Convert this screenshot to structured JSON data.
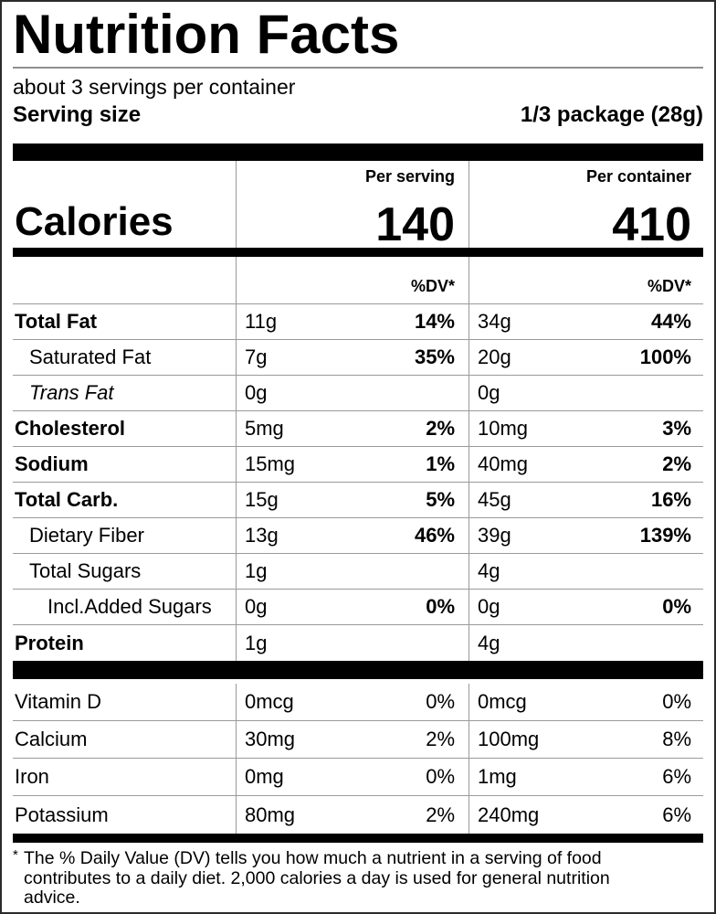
{
  "label": {
    "title": "Nutrition Facts",
    "servings_per_container": "about 3 servings per container",
    "serving_size_label": "Serving size",
    "serving_size_value": "1/3 package (28g)",
    "calories_label": "Calories",
    "calories_columns": [
      {
        "header": "Per serving",
        "value": "140",
        "dv_header": "%DV*"
      },
      {
        "header": "Per container",
        "value": "410",
        "dv_header": "%DV*"
      }
    ],
    "nutrients": [
      {
        "name": "Total Fat",
        "style": "bold",
        "indent": 0,
        "serving_amount": "11g",
        "serving_dv": "14%",
        "container_amount": "34g",
        "container_dv": "44%"
      },
      {
        "name": "Saturated Fat",
        "style": "regular",
        "indent": 1,
        "serving_amount": "7g",
        "serving_dv": "35%",
        "container_amount": "20g",
        "container_dv": "100%"
      },
      {
        "name": "Trans Fat",
        "style": "italic",
        "indent": 1,
        "serving_amount": "0g",
        "serving_dv": "",
        "container_amount": "0g",
        "container_dv": ""
      },
      {
        "name": "Cholesterol",
        "style": "bold",
        "indent": 0,
        "serving_amount": "5mg",
        "serving_dv": "2%",
        "container_amount": "10mg",
        "container_dv": "3%"
      },
      {
        "name": "Sodium",
        "style": "bold",
        "indent": 0,
        "serving_amount": "15mg",
        "serving_dv": "1%",
        "container_amount": "40mg",
        "container_dv": "2%"
      },
      {
        "name": "Total Carb.",
        "style": "bold",
        "indent": 0,
        "serving_amount": "15g",
        "serving_dv": "5%",
        "container_amount": "45g",
        "container_dv": "16%"
      },
      {
        "name": "Dietary Fiber",
        "style": "regular",
        "indent": 1,
        "serving_amount": "13g",
        "serving_dv": "46%",
        "container_amount": "39g",
        "container_dv": "139%"
      },
      {
        "name": "Total Sugars",
        "style": "regular",
        "indent": 1,
        "serving_amount": "1g",
        "serving_dv": "",
        "container_amount": "4g",
        "container_dv": ""
      },
      {
        "name": "Incl.Added Sugars",
        "style": "regular",
        "indent": 2,
        "serving_amount": "0g",
        "serving_dv": "0%",
        "container_amount": "0g",
        "container_dv": "0%"
      },
      {
        "name": "Protein",
        "style": "bold",
        "indent": 0,
        "serving_amount": "1g",
        "serving_dv": "",
        "container_amount": "4g",
        "container_dv": ""
      }
    ],
    "micronutrients": [
      {
        "name": "Vitamin D",
        "style": "regular",
        "indent": 0,
        "serving_amount": "0mcg",
        "serving_dv": "0%",
        "container_amount": "0mcg",
        "container_dv": "0%"
      },
      {
        "name": "Calcium",
        "style": "regular",
        "indent": 0,
        "serving_amount": "30mg",
        "serving_dv": "2%",
        "container_amount": "100mg",
        "container_dv": "8%"
      },
      {
        "name": "Iron",
        "style": "regular",
        "indent": 0,
        "serving_amount": "0mg",
        "serving_dv": "0%",
        "container_amount": "1mg",
        "container_dv": "6%"
      },
      {
        "name": "Potassium",
        "style": "regular",
        "indent": 0,
        "serving_amount": "80mg",
        "serving_dv": "2%",
        "container_amount": "240mg",
        "container_dv": "6%"
      }
    ],
    "footnote_marker": "*",
    "footnote": "The % Daily Value (DV) tells you how much a nutrient in a serving of food contributes to a daily diet. 2,000 calories a day is used for general nutrition advice."
  },
  "colors": {
    "text": "#000000",
    "rule": "#9a9a9a",
    "bar": "#000000",
    "background": "#ffffff"
  }
}
